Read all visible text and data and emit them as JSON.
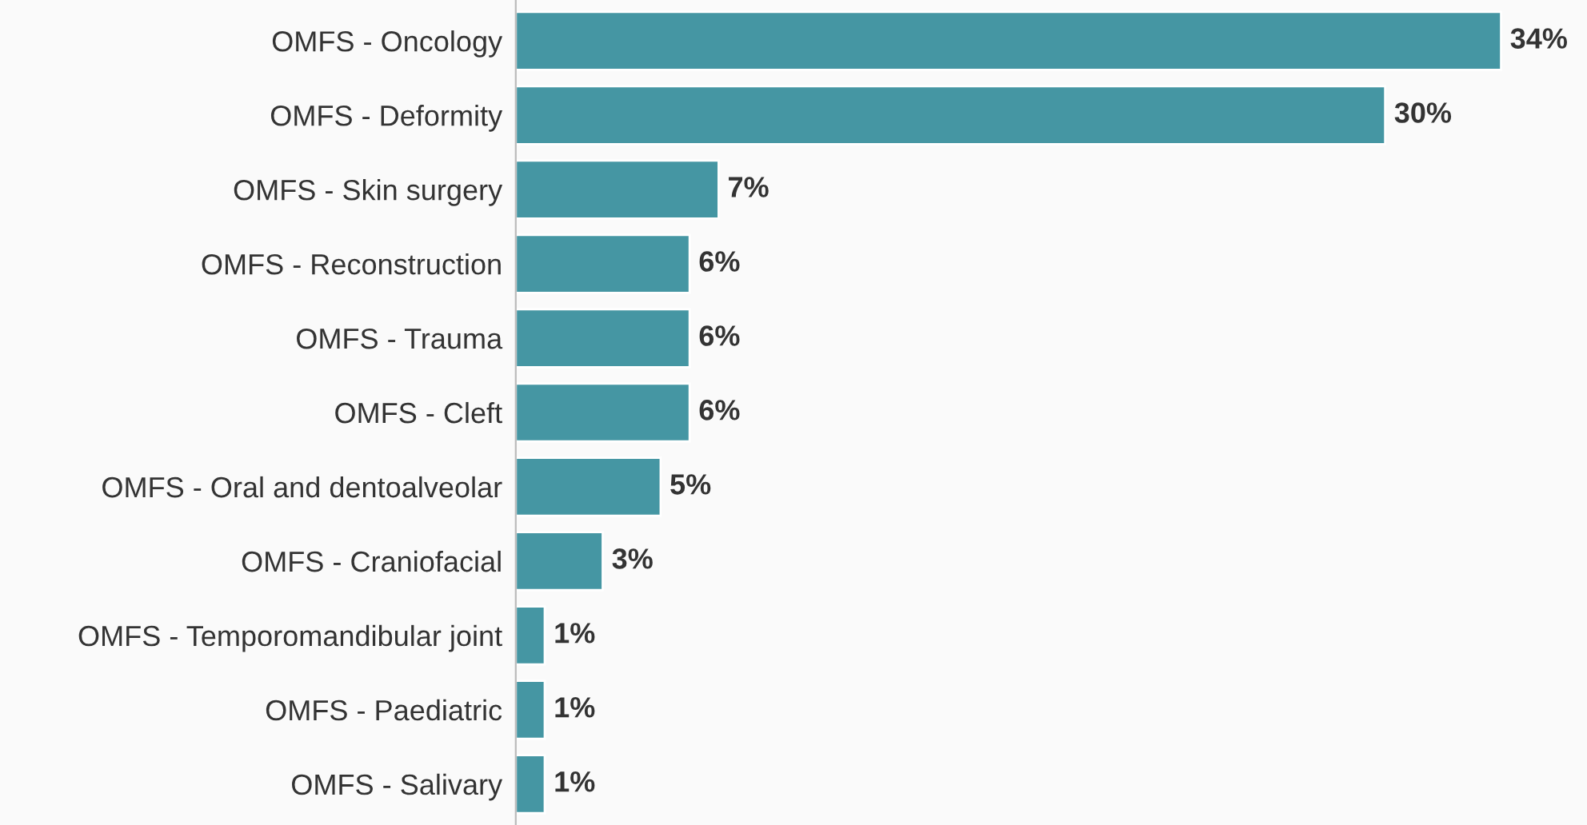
{
  "chart_data": {
    "type": "bar",
    "orientation": "horizontal",
    "categories": [
      "OMFS - Oncology",
      "OMFS - Deformity",
      "OMFS - Skin surgery",
      "OMFS - Reconstruction",
      "OMFS - Trauma",
      "OMFS - Cleft",
      "OMFS - Oral and dentoalveolar",
      "OMFS - Craniofacial",
      "OMFS - Temporomandibular joint",
      "OMFS - Paediatric",
      "OMFS - Salivary"
    ],
    "values": [
      34,
      30,
      7,
      6,
      6,
      6,
      5,
      3,
      1,
      1,
      1
    ],
    "value_labels": [
      "34%",
      "30%",
      "7%",
      "6%",
      "6%",
      "6%",
      "5%",
      "3%",
      "1%",
      "1%",
      "1%"
    ],
    "color": "#4596a3",
    "grid": false,
    "legend": false
  }
}
